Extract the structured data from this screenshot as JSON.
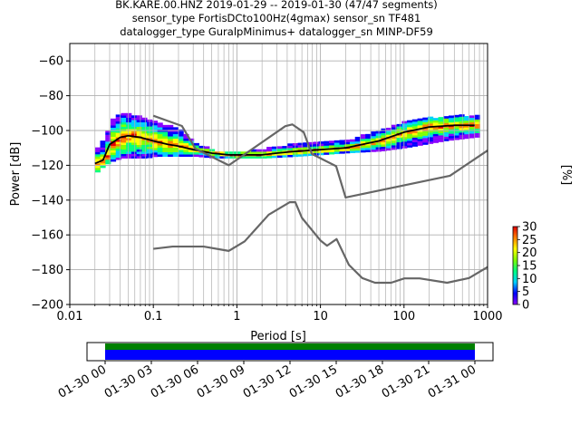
{
  "title": {
    "line1": "BK.KARE.00.HNZ   2019-01-29 -- 2019-01-30  (47/47 segments)",
    "line2": "sensor_type FortisDCto100Hz(4gmax) sensor_sn TF481",
    "line3": "datalogger_type GuralpMinimus+ datalogger_sn MINP-DF59"
  },
  "chart_data": [
    {
      "type": "heatmap",
      "title": "BK.KARE.00.HNZ   2019-01-29 -- 2019-01-30  (47/47 segments)",
      "xlabel": "Period [s]",
      "ylabel": "Power [dB]",
      "xscale": "log",
      "xlim": [
        0.01,
        1000
      ],
      "ylim": [
        -200,
        -50
      ],
      "grid": true,
      "x_ticks": [
        "0.01",
        "0.1",
        "1",
        "10",
        "100",
        "1000"
      ],
      "y_ticks": [
        "-60",
        "-80",
        "-100",
        "-120",
        "-140",
        "-160",
        "-180",
        "-200"
      ],
      "colorbar": {
        "label": "[%]",
        "range": [
          0,
          30
        ],
        "ticks": [
          "0",
          "5",
          "10",
          "15",
          "20",
          "25",
          "30"
        ],
        "colormap": [
          "#ffffff",
          "#8a00ff",
          "#0000ff",
          "#00d0ff",
          "#00ff80",
          "#80ff00",
          "#ffff00",
          "#ff8000",
          "#e00000"
        ]
      },
      "heatmap_bands": [
        {
          "period": 0.02,
          "power_min": -124,
          "power_max": -110
        },
        {
          "period": 0.025,
          "power_min": -120,
          "power_max": -104
        },
        {
          "period": 0.03,
          "power_min": -118,
          "power_max": -94
        },
        {
          "period": 0.04,
          "power_min": -116,
          "power_max": -90
        },
        {
          "period": 0.06,
          "power_min": -116,
          "power_max": -92
        },
        {
          "period": 0.08,
          "power_min": -116,
          "power_max": -94
        },
        {
          "period": 0.1,
          "power_min": -115,
          "power_max": -95
        },
        {
          "period": 0.15,
          "power_min": -115,
          "power_max": -98
        },
        {
          "period": 0.2,
          "power_min": -115,
          "power_max": -100
        },
        {
          "period": 0.3,
          "power_min": -115,
          "power_max": -108
        },
        {
          "period": 0.5,
          "power_min": -116,
          "power_max": -112
        },
        {
          "period": 1,
          "power_min": -116,
          "power_max": -113
        },
        {
          "period": 2,
          "power_min": -116,
          "power_max": -111
        },
        {
          "period": 5,
          "power_min": -115,
          "power_max": -108
        },
        {
          "period": 10,
          "power_min": -114,
          "power_max": -107
        },
        {
          "period": 20,
          "power_min": -113,
          "power_max": -106
        },
        {
          "period": 50,
          "power_min": -112,
          "power_max": -100
        },
        {
          "period": 100,
          "power_min": -110,
          "power_max": -95
        },
        {
          "period": 300,
          "power_min": -106,
          "power_max": -92
        },
        {
          "period": 700,
          "power_min": -104,
          "power_max": -92
        }
      ],
      "series": [
        {
          "color": "#000000",
          "x": [
            0.02,
            0.025,
            0.03,
            0.04,
            0.05,
            0.07,
            0.1,
            0.15,
            0.2,
            0.3,
            0.5,
            0.8,
            1,
            2,
            3,
            5,
            10,
            20,
            50,
            100,
            200,
            400,
            700
          ],
          "y": [
            -119,
            -117,
            -108,
            -104,
            -103,
            -104,
            -106,
            -108,
            -109,
            -111,
            -113,
            -114,
            -114,
            -114,
            -113,
            -112,
            -111,
            -110,
            -106,
            -101,
            -98,
            -97,
            -97
          ]
        },
        {
          "color": "#666666",
          "x": [
            0.1,
            0.22,
            0.32,
            0.8,
            3.8,
            4.6,
            6.3,
            7.9,
            15.4,
            20,
            354.8,
            1000
          ],
          "y": [
            -91.5,
            -97.4,
            -110.5,
            -120,
            -97.5,
            -96.5,
            -101,
            -113.5,
            -120.5,
            -138.5,
            -126,
            -111.5
          ]
        },
        {
          "color": "#666666",
          "x": [
            0.1,
            0.17,
            0.4,
            0.8,
            1.24,
            2.4,
            4.3,
            5,
            6,
            10,
            12,
            15.6,
            21.9,
            31.6,
            45,
            70,
            101,
            154,
            328,
            600,
            1000
          ],
          "y": [
            -168,
            -166.7,
            -166.7,
            -169.2,
            -163.7,
            -148.4,
            -141.2,
            -141.2,
            -150.2,
            -163.2,
            -166.2,
            -162.4,
            -177.2,
            -184.8,
            -187.5,
            -187.5,
            -185,
            -185,
            -187.5,
            -184.8,
            -178.5
          ]
        }
      ]
    },
    {
      "type": "bar",
      "x_ticks": [
        "01-30 00",
        "01-30 03",
        "01-30 06",
        "01-30 09",
        "01-30 12",
        "01-30 15",
        "01-30 18",
        "01-30 21",
        "01-31 00"
      ],
      "coverage": [
        {
          "color": "#008000",
          "start": "01-30 00",
          "end": "01-31 00"
        },
        {
          "color": "#0000ff",
          "start": "01-30 00",
          "end": "01-31 00"
        }
      ]
    }
  ]
}
